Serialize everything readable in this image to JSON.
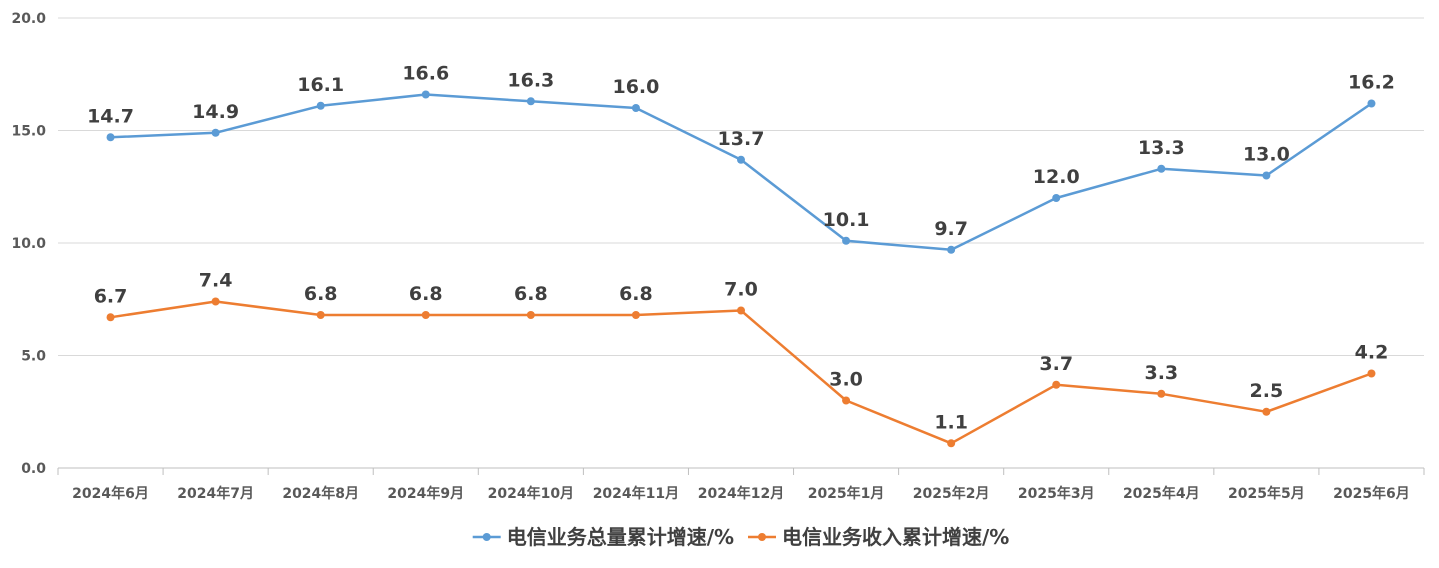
{
  "chart_data": {
    "type": "line",
    "categories": [
      "2024年6月",
      "2024年7月",
      "2024年8月",
      "2024年9月",
      "2024年10月",
      "2024年11月",
      "2024年12月",
      "2025年1月",
      "2025年2月",
      "2025年3月",
      "2025年4月",
      "2025年5月",
      "2025年6月"
    ],
    "series": [
      {
        "name": "电信业务总量累计增速/%",
        "color": "#5B9BD5",
        "values": [
          14.7,
          14.9,
          16.1,
          16.6,
          16.3,
          16.0,
          13.7,
          10.1,
          9.7,
          12.0,
          13.3,
          13.0,
          16.2
        ]
      },
      {
        "name": "电信业务收入累计增速/%",
        "color": "#ED7D31",
        "values": [
          6.7,
          7.4,
          6.8,
          6.8,
          6.8,
          6.8,
          7.0,
          3.0,
          1.1,
          3.7,
          3.3,
          2.5,
          4.2
        ]
      }
    ],
    "ylim": [
      0,
      20
    ],
    "yticks": [
      "0.0",
      "5.0",
      "10.0",
      "15.0",
      "20.0"
    ],
    "ytick_values": [
      0,
      5,
      10,
      15,
      20
    ],
    "grid": true,
    "legend_position": "bottom",
    "data_labels": true
  }
}
